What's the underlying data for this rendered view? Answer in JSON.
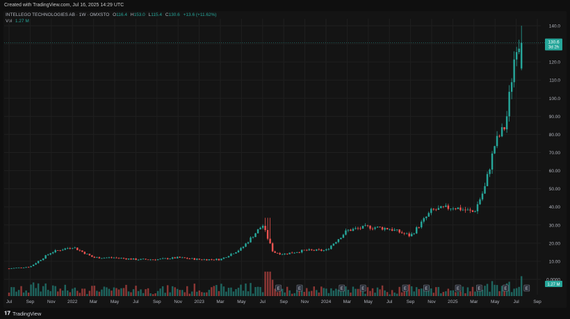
{
  "header": {
    "created_text": "Created with TradingView.com, Jul 16, 2025 14:29 UTC"
  },
  "legend": {
    "symbol_line": "INTELLEGO TECHNOLOGIES AB · 1W · OMXSTO",
    "open_label": "O",
    "open_value": "116.4",
    "high_label": "H",
    "high_value": "153.0",
    "low_label": "L",
    "low_value": "115.4",
    "close_label": "C",
    "close_value": "130.6",
    "change": "+13.6 (+11.62%)",
    "vol_label": "Vol",
    "vol_value": "1.27 M"
  },
  "price_axis": {
    "last_price": "130.6",
    "countdown": "3d 2h",
    "volume_tag": "1.27 M"
  },
  "footer": {
    "brand": "TradingView"
  },
  "colors": {
    "up": "#26a69a",
    "down": "#ef5350",
    "grid": "#1f1f1f",
    "axis_text": "#b2b5be",
    "background": "#141414"
  },
  "chart_data": {
    "type": "candlestick",
    "title": "",
    "price_axis_ticks": [
      0,
      10,
      20,
      30,
      40,
      50,
      60,
      70,
      80,
      90,
      100,
      110,
      120,
      130,
      140
    ],
    "price_axis_labels": [
      "0.0000",
      "10.00",
      "20.00",
      "30.00",
      "40.00",
      "50.00",
      "60.00",
      "70.00",
      "80.00",
      "90.00",
      "100.0",
      "110.0",
      "120.0",
      "130.0",
      "140.0"
    ],
    "ylim": [
      0,
      140
    ],
    "x_tick_labels": [
      "Jul",
      "Sep",
      "Nov",
      "2022",
      "Mar",
      "May",
      "Jul",
      "Sep",
      "Nov",
      "2023",
      "Mar",
      "May",
      "Jul",
      "Sep",
      "Nov",
      "2024",
      "Mar",
      "May",
      "Jul",
      "Sep",
      "Nov",
      "2025",
      "Mar",
      "May",
      "Jul",
      "Sep"
    ],
    "earnings_markers": [
      "E",
      "E",
      "E",
      "E",
      "E",
      "E",
      "E",
      "E",
      "E",
      "E"
    ],
    "last_close": 130.6,
    "volume_last": "1.27 M",
    "weekly_close_anchors": [
      {
        "date": "2021-07",
        "close": 6
      },
      {
        "date": "2021-09",
        "close": 7
      },
      {
        "date": "2021-11",
        "close": 15
      },
      {
        "date": "2022-01",
        "close": 18
      },
      {
        "date": "2022-03",
        "close": 12
      },
      {
        "date": "2022-05",
        "close": 12
      },
      {
        "date": "2022-07",
        "close": 11
      },
      {
        "date": "2022-09",
        "close": 11
      },
      {
        "date": "2022-11",
        "close": 12
      },
      {
        "date": "2023-01",
        "close": 11
      },
      {
        "date": "2023-03",
        "close": 11
      },
      {
        "date": "2023-05",
        "close": 17
      },
      {
        "date": "2023-07",
        "close": 30
      },
      {
        "date": "2023-08",
        "close": 15
      },
      {
        "date": "2023-09",
        "close": 14
      },
      {
        "date": "2023-11",
        "close": 16
      },
      {
        "date": "2024-01",
        "close": 16
      },
      {
        "date": "2024-03",
        "close": 27
      },
      {
        "date": "2024-05",
        "close": 29
      },
      {
        "date": "2024-07",
        "close": 28
      },
      {
        "date": "2024-09",
        "close": 24
      },
      {
        "date": "2024-11",
        "close": 38
      },
      {
        "date": "2025-01",
        "close": 40
      },
      {
        "date": "2025-03",
        "close": 37
      },
      {
        "date": "2025-04",
        "close": 50
      },
      {
        "date": "2025-05",
        "close": 75
      },
      {
        "date": "2025-06",
        "close": 85
      },
      {
        "date": "2025-07",
        "close": 130.6
      }
    ]
  }
}
